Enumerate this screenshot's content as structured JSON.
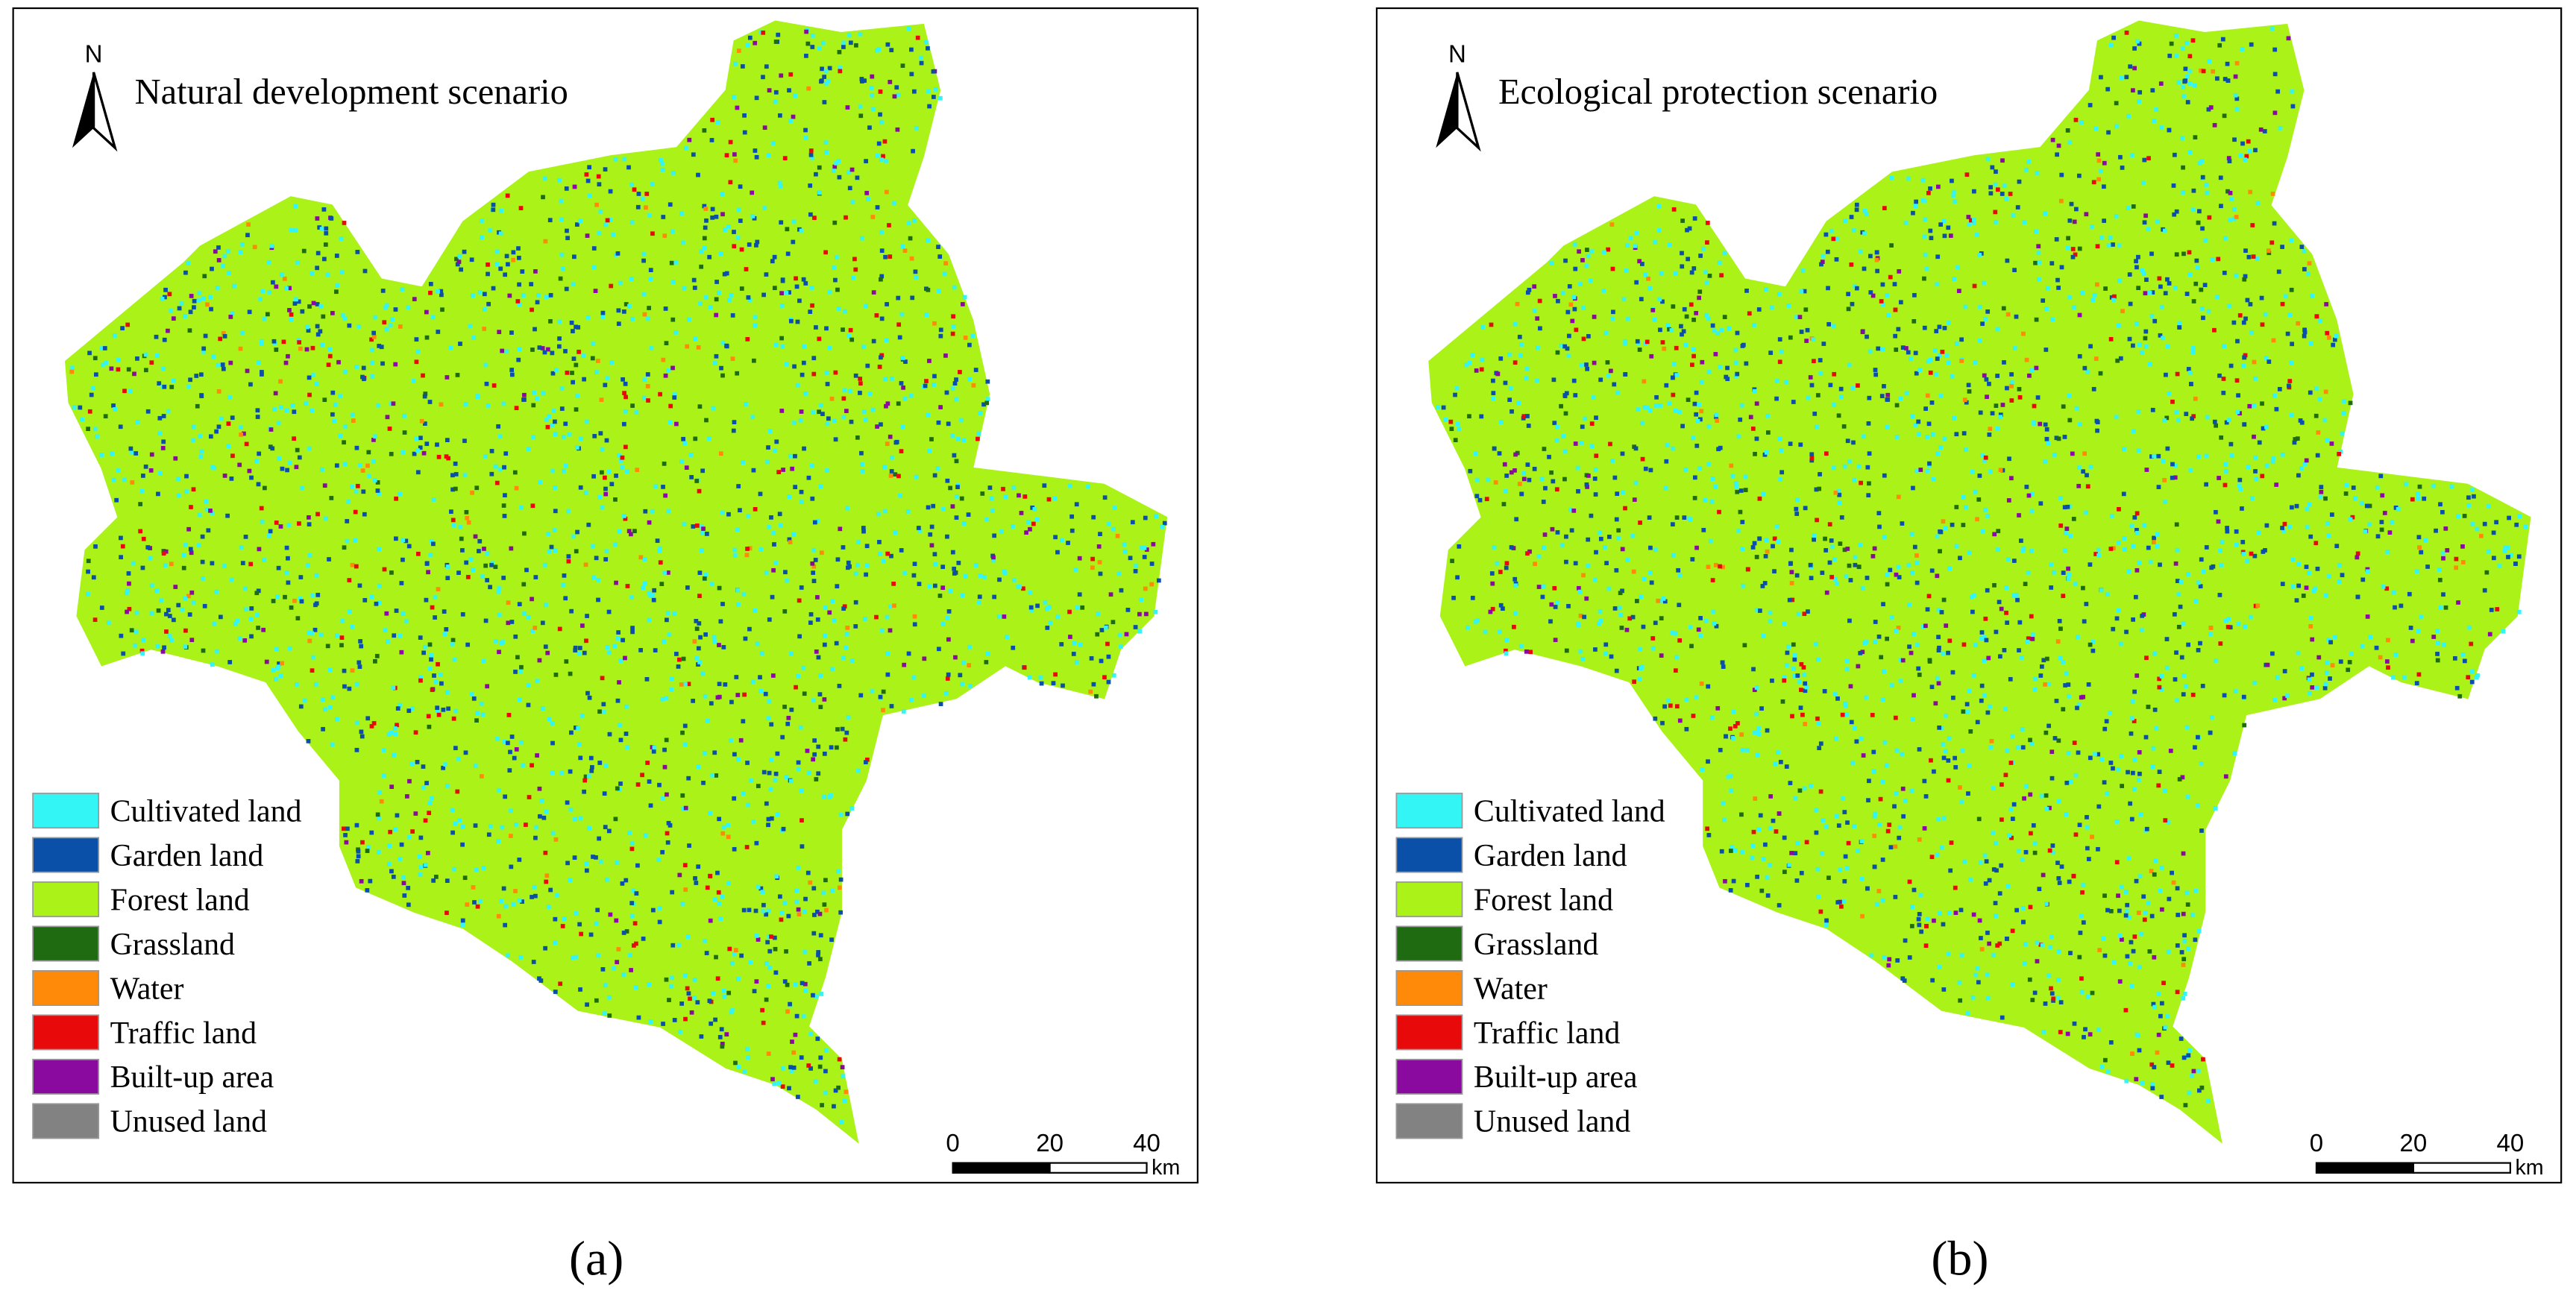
{
  "panels": [
    {
      "title": "Natural development scenario",
      "caption": "(a)",
      "north": "N",
      "legend": [
        {
          "label": "Cultivated land",
          "color": "#33f5f5"
        },
        {
          "label": "Garden land",
          "color": "#0a4fa8"
        },
        {
          "label": "Forest land",
          "color": "#aaf218"
        },
        {
          "label": "Grassland",
          "color": "#1f6b12"
        },
        {
          "label": "Water",
          "color": "#ff8a0a"
        },
        {
          "label": "Traffic land",
          "color": "#e80a0a"
        },
        {
          "label": "Built-up area",
          "color": "#8a0aa0"
        },
        {
          "label": "Unused land",
          "color": "#828282"
        }
      ],
      "scale": {
        "ticks": [
          0,
          20,
          40
        ],
        "unit": "km"
      }
    },
    {
      "title": "Ecological protection scenario",
      "caption": "(b)",
      "north": "N",
      "legend": [
        {
          "label": "Cultivated land",
          "color": "#33f5f5"
        },
        {
          "label": "Garden land",
          "color": "#0a4fa8"
        },
        {
          "label": "Forest land",
          "color": "#aaf218"
        },
        {
          "label": "Grassland",
          "color": "#1f6b12"
        },
        {
          "label": "Water",
          "color": "#ff8a0a"
        },
        {
          "label": "Traffic land",
          "color": "#e80a0a"
        },
        {
          "label": "Built-up area",
          "color": "#8a0aa0"
        },
        {
          "label": "Unused land",
          "color": "#828282"
        }
      ],
      "scale": {
        "ticks": [
          0,
          20,
          40
        ],
        "unit": "km"
      }
    }
  ]
}
